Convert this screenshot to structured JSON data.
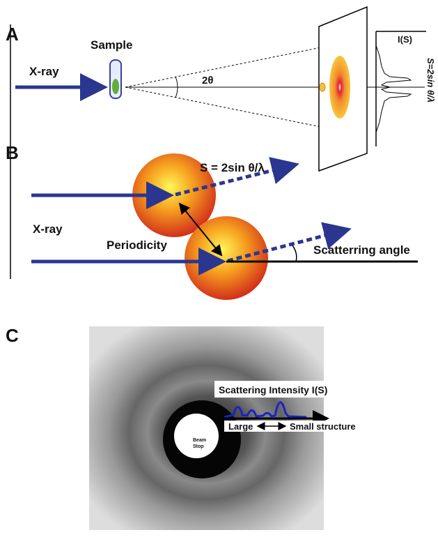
{
  "panel_a": {
    "label": "A",
    "sample": "Sample",
    "xray": "X-ray",
    "angle": "2θ",
    "intensity": "I(S)",
    "formula": "S=2sin θ/λ"
  },
  "panel_b": {
    "label": "B",
    "formula": "S = 2sin θ/λ",
    "xray": "X-ray",
    "periodicity": "Periodicity",
    "angle": "Scatterring angle"
  },
  "panel_c": {
    "label": "C",
    "intensity": "Scattering Intensity I(S)",
    "beam_stop": [
      "Beam",
      "Stop"
    ],
    "large": "Large",
    "small": "Small structure"
  }
}
